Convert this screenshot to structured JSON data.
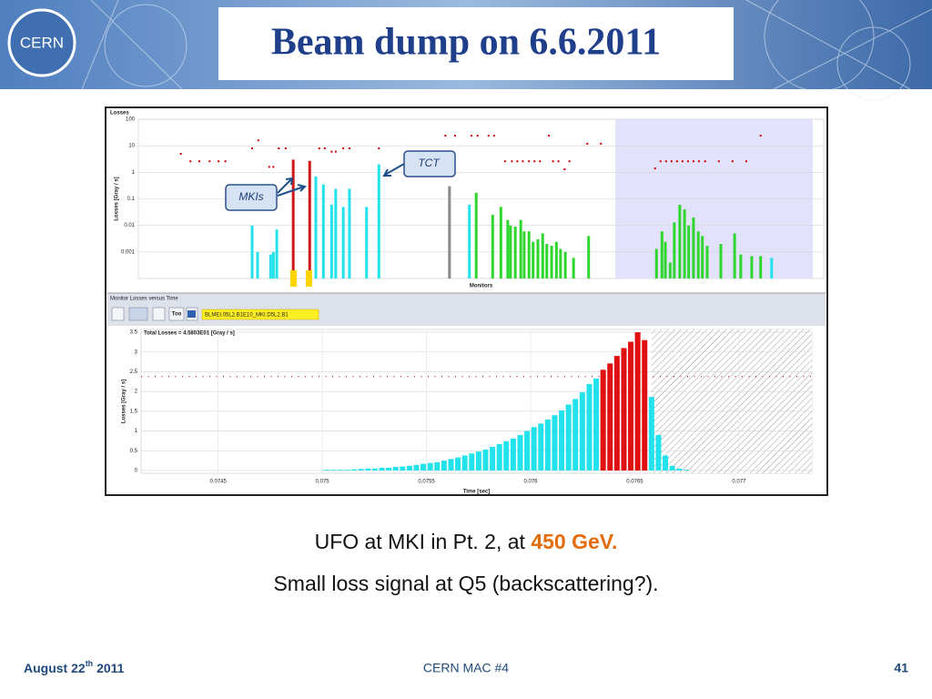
{
  "header": {
    "logo": "CERN",
    "title": "Beam dump on 6.6.2011"
  },
  "callouts": {
    "tct": "TCT",
    "mkis": "MKIs"
  },
  "toolbar": {
    "panel_title": "Monitor Losses versus Time",
    "button": "Too",
    "selection": "BLMEI.05L2.B1E10_MKI.D5L2.B1"
  },
  "chart_data": [
    {
      "type": "bar",
      "title": "Losses",
      "y_label": "Losses [Gray / s]",
      "x_label": "Monitors",
      "log_y": true,
      "xlim": [
        0,
        100
      ],
      "ylim": [
        0.0001,
        100
      ],
      "yticks": [
        100,
        10,
        1,
        0.1,
        0.01,
        0.001
      ],
      "grid": true,
      "shaded_region": [
        69.6,
        98.4
      ],
      "series": [
        {
          "color": "#22e2ec",
          "x": [
            16.6,
            17.4,
            19.3,
            19.7,
            20.2,
            25.9,
            27.0,
            28.2,
            28.8,
            29.9,
            30.8,
            33.3,
            35.1,
            48.3,
            92.4
          ],
          "values": [
            0.01,
            0.001,
            0.0008,
            0.001,
            0.007,
            0.7,
            0.35,
            0.06,
            0.24,
            0.05,
            0.24,
            0.05,
            2,
            0.06,
            0.0006
          ]
        },
        {
          "color": "#d01818",
          "x": [
            22.6,
            25.0
          ],
          "values": [
            3,
            2.7
          ]
        },
        {
          "color": "#8a8a8a",
          "x": [
            45.4
          ],
          "values": [
            0.3
          ]
        },
        {
          "color": "#2ed62e",
          "x": [
            49.3,
            51.7,
            52.9,
            53.9,
            54.3,
            55.0,
            55.8,
            56.3,
            57.0,
            57.6,
            58.3,
            59.0,
            59.6,
            60.3,
            61.0,
            61.6,
            62.3,
            63.5,
            65.7,
            75.6,
            76.4,
            76.9,
            77.6,
            78.2,
            79.0,
            79.7,
            80.3,
            81.0,
            81.7,
            82.3,
            83.0,
            85.0,
            87.0,
            87.9,
            89.5,
            90.8
          ],
          "values": [
            0.17,
            0.025,
            0.05,
            0.016,
            0.01,
            0.009,
            0.016,
            0.006,
            0.006,
            0.0024,
            0.003,
            0.005,
            0.002,
            0.0017,
            0.0024,
            0.0013,
            0.001,
            0.0006,
            0.004,
            0.0013,
            0.006,
            0.0024,
            0.0004,
            0.013,
            0.06,
            0.04,
            0.01,
            0.02,
            0.006,
            0.004,
            0.0017,
            0.002,
            0.005,
            0.0008,
            0.0007,
            0.0007
          ]
        },
        {
          "type": "scatter",
          "color": "#cc0000",
          "x": [
            6.2,
            7.6,
            8.9,
            10.4,
            11.7,
            12.7,
            16.6,
            17.5,
            19.1,
            19.7,
            20.5,
            21.5,
            26.4,
            27.2,
            28.2,
            28.8,
            29.9,
            30.8,
            35.1,
            44.8,
            46.2,
            48.6,
            49.5,
            51.1,
            51.9,
            53.5,
            54.5,
            55.3,
            56.1,
            57.0,
            57.8,
            58.6,
            59.9,
            60.5,
            61.3,
            62.2,
            62.9,
            65.5,
            67.5,
            75.4,
            76.2,
            77.0,
            77.8,
            78.6,
            79.4,
            80.2,
            81.0,
            81.8,
            82.7,
            84.7,
            86.7,
            88.7,
            90.8
          ],
          "values": [
            5,
            2.6,
            2.6,
            2.6,
            2.6,
            2.6,
            8,
            16,
            1.6,
            1.6,
            8,
            8,
            8,
            8,
            6,
            6,
            8,
            8,
            8,
            24,
            24,
            24,
            24,
            24,
            24,
            2.6,
            2.6,
            2.6,
            2.6,
            2.6,
            2.6,
            2.6,
            24,
            2.6,
            2.6,
            1.3,
            2.6,
            12,
            12,
            1.4,
            2.6,
            2.6,
            2.6,
            2.6,
            2.6,
            2.6,
            2.6,
            2.6,
            2.6,
            2.6,
            2.6,
            2.6,
            24
          ]
        }
      ]
    },
    {
      "type": "bar",
      "title": "Total Losses = 4.5803E01 [Gray / s]",
      "y_label": "Losses [Gray / s]",
      "x_label": "Time [sec]",
      "xlim": [
        0.07413,
        0.07735
      ],
      "ylim": [
        -0.07,
        3.57
      ],
      "xticks": [
        0.0745,
        0.075,
        0.0755,
        0.076,
        0.0765,
        0.077
      ],
      "yticks": [
        0,
        0.5,
        1,
        1.5,
        2,
        2.5,
        3,
        3.5
      ],
      "grid": true,
      "threshold": 2.38,
      "hatched_from": 0.07658,
      "series": [
        {
          "color": "#22e2ec",
          "x": [
            0.07502,
            0.0750532,
            0.0750864,
            0.0751196,
            0.0751528,
            0.075186,
            0.0752192,
            0.0752524,
            0.0752856,
            0.0753188,
            0.075352,
            0.0753852,
            0.0754184,
            0.0754516,
            0.0754848,
            0.075518,
            0.0755512,
            0.0755844,
            0.0756176,
            0.0756508,
            0.075684,
            0.0757172,
            0.0757504,
            0.0757836,
            0.0758168,
            0.07585,
            0.0758832,
            0.0759164,
            0.0759496,
            0.0759828,
            0.076016,
            0.0760492,
            0.0760824,
            0.0761156,
            0.0761488,
            0.076182,
            0.0762152,
            0.0762484,
            0.0762816,
            0.0763148,
            0.0765804,
            0.0766136,
            0.0766468,
            0.07668,
            0.0767132,
            0.0767464
          ],
          "values": [
            0.02,
            0.02,
            0.02,
            0.02,
            0.03,
            0.04,
            0.05,
            0.05,
            0.07,
            0.07,
            0.09,
            0.1,
            0.12,
            0.14,
            0.17,
            0.19,
            0.21,
            0.25,
            0.29,
            0.33,
            0.38,
            0.43,
            0.48,
            0.53,
            0.6,
            0.67,
            0.74,
            0.81,
            0.9,
            1.0,
            1.1,
            1.19,
            1.29,
            1.4,
            1.52,
            1.67,
            1.81,
            1.98,
            2.19,
            2.33,
            1.86,
            0.9,
            0.38,
            0.12,
            0.05,
            0.02
          ]
        },
        {
          "color": "#e01010",
          "x": [
            0.076348,
            0.0763812,
            0.0764144,
            0.0764476,
            0.0764808,
            0.076514,
            0.0765472
          ],
          "values": [
            2.55,
            2.71,
            2.9,
            3.1,
            3.26,
            3.5,
            3.3
          ]
        }
      ]
    }
  ],
  "body": {
    "line1": {
      "text": "UFO at MKI in Pt. 2, at ",
      "highlight": "450 GeV."
    },
    "line2": "Small loss signal at Q5 (backscattering?)."
  },
  "footer": {
    "date": "August 22",
    "date_sup": "th",
    "year": " 2011",
    "center": "CERN MAC #4",
    "page": "41"
  }
}
